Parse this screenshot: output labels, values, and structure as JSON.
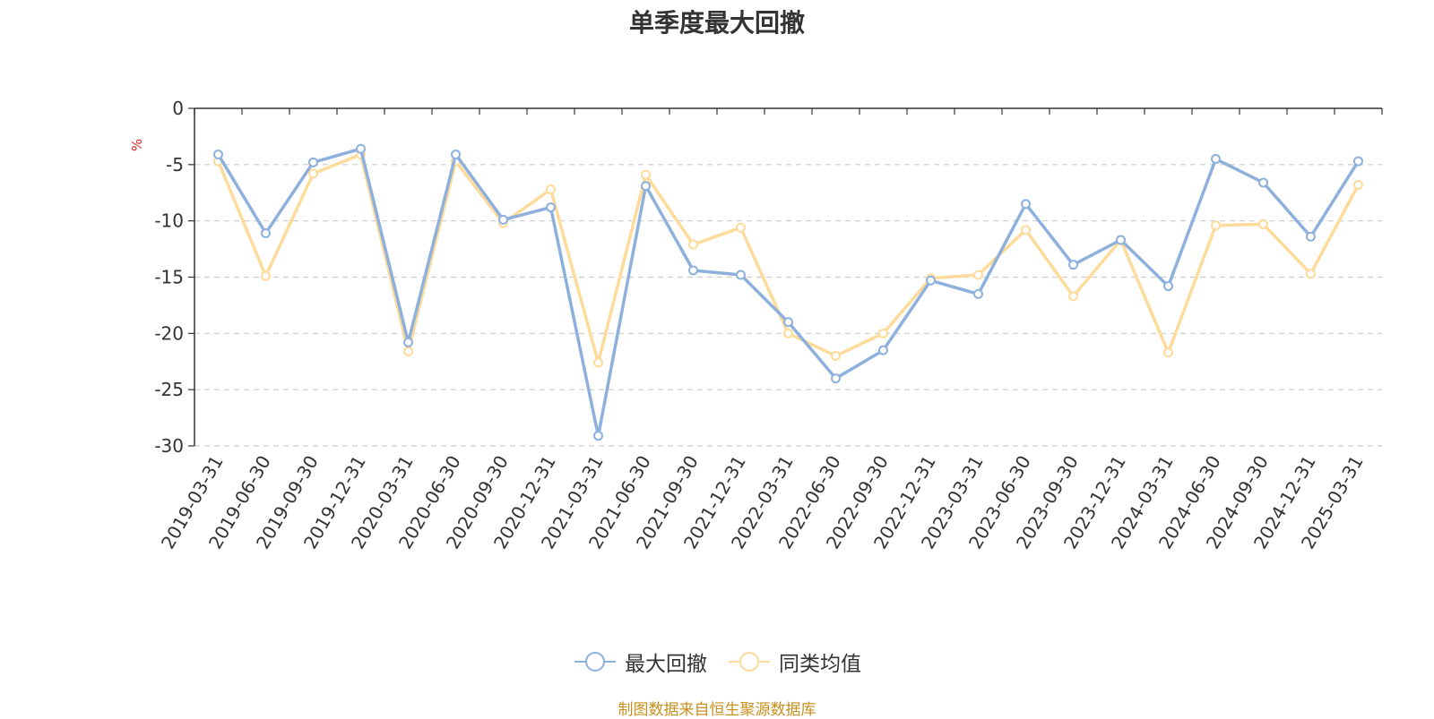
{
  "title": "单季度最大回撤",
  "source": "制图数据来自恒生聚源数据库",
  "chart_data": {
    "type": "line",
    "title": "单季度最大回撤",
    "ylabel": "%",
    "ylim": [
      -30,
      0
    ],
    "yticks": [
      0,
      -5,
      -10,
      -15,
      -20,
      -25,
      -30
    ],
    "categories": [
      "2019-03-31",
      "2019-06-30",
      "2019-09-30",
      "2019-12-31",
      "2020-03-31",
      "2020-06-30",
      "2020-09-30",
      "2020-12-31",
      "2021-03-31",
      "2021-06-30",
      "2021-09-30",
      "2021-12-31",
      "2022-03-31",
      "2022-06-30",
      "2022-09-30",
      "2022-12-31",
      "2023-03-31",
      "2023-06-30",
      "2023-09-30",
      "2023-12-31",
      "2024-03-31",
      "2024-06-30",
      "2024-09-30",
      "2024-12-31",
      "2025-03-31"
    ],
    "series": [
      {
        "name": "最大回撤",
        "color": "#8eb0dc",
        "values": [
          -4.1,
          -11.1,
          -4.8,
          -3.6,
          -20.8,
          -4.1,
          -9.9,
          -8.8,
          -29.1,
          -6.9,
          -14.4,
          -14.8,
          -19.0,
          -24.0,
          -21.5,
          -15.3,
          -16.5,
          -8.5,
          -13.9,
          -11.7,
          -15.8,
          -4.5,
          -6.6,
          -11.4,
          -4.7
        ]
      },
      {
        "name": "同类均值",
        "color": "#fddb9a",
        "values": [
          -4.7,
          -14.9,
          -5.8,
          -4.1,
          -21.6,
          -4.7,
          -10.2,
          -7.2,
          -22.6,
          -5.9,
          -12.1,
          -10.6,
          -20.0,
          -22.0,
          -20.0,
          -15.1,
          -14.8,
          -10.8,
          -16.7,
          -11.7,
          -21.7,
          -10.4,
          -10.3,
          -14.7,
          -6.8
        ]
      }
    ],
    "grid": true,
    "legend": "bottom"
  }
}
